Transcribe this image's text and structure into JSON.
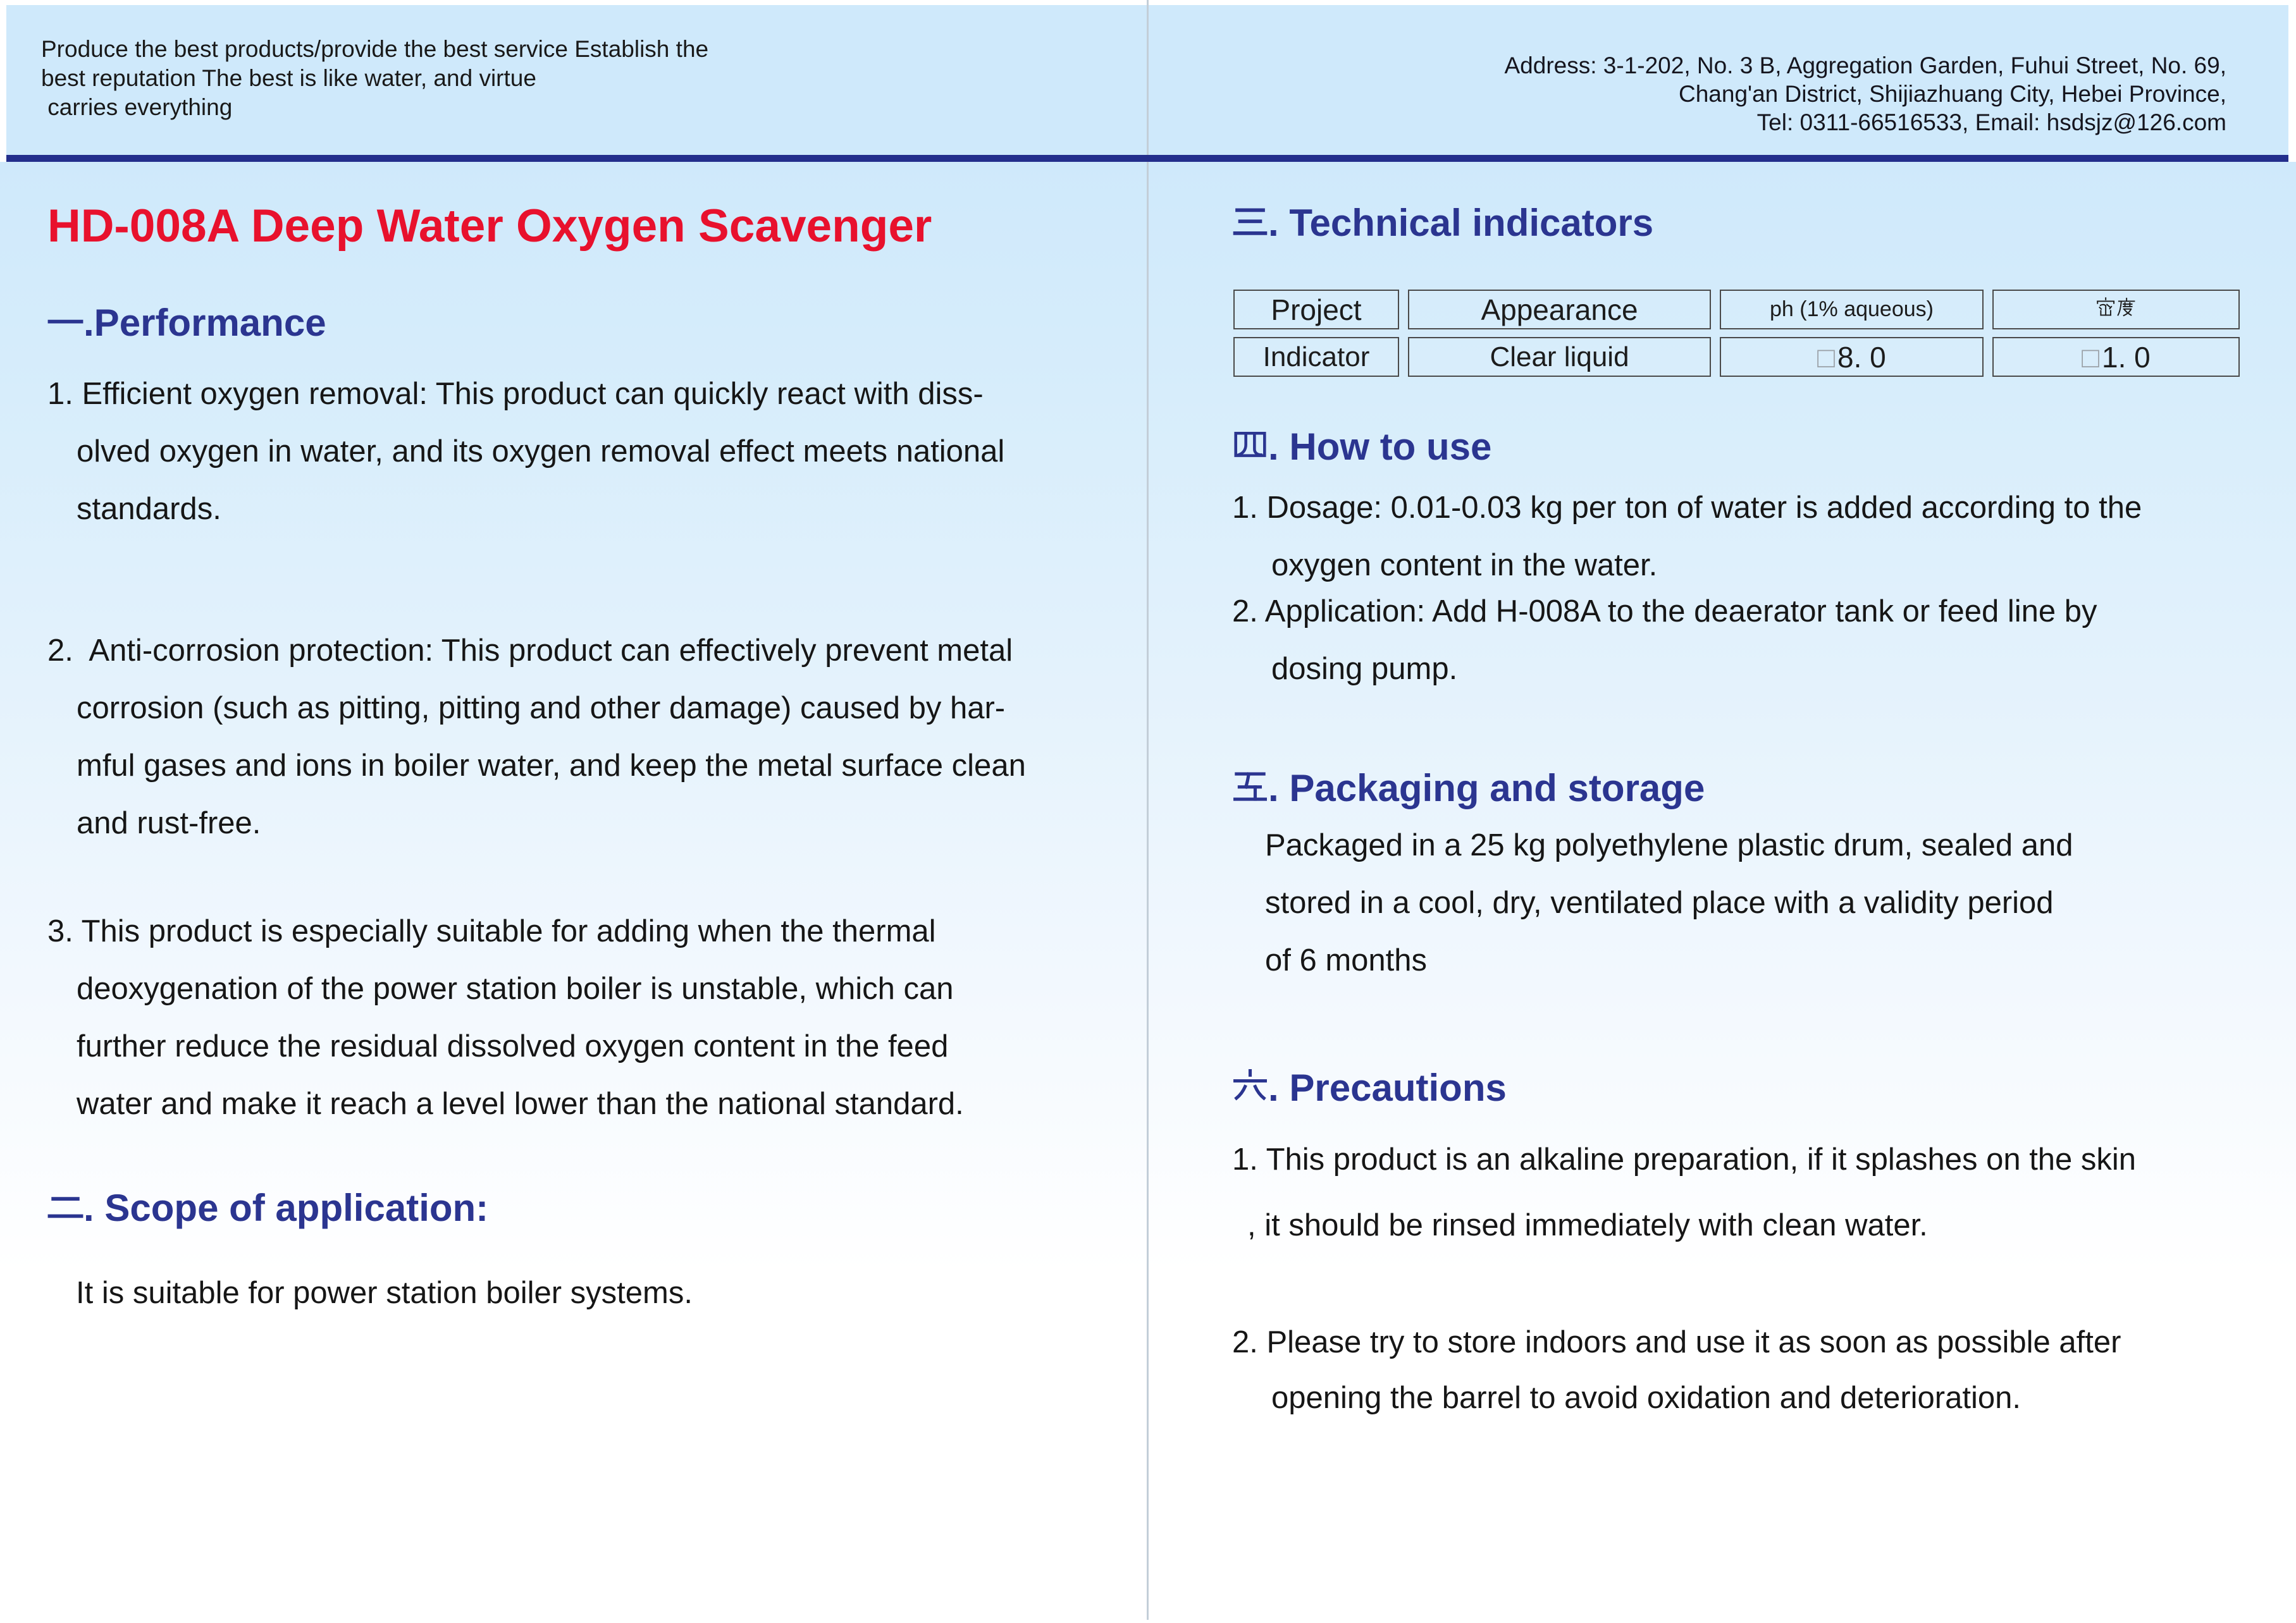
{
  "header": {
    "slogan_lines": [
      "Produce the best products/provide the best service Establish the",
      "best reputation The best is like water, and virtue",
      " carries everything"
    ],
    "address_lines": [
      "Address: 3-1-202, No. 3 B, Aggregation Garden, Fuhui Street, No. 69,",
      "Chang'an District, Shijiazhuang City, Hebei Province,",
      "Tel: 0311-66516533, Email: hsdsjz@126.com"
    ]
  },
  "title": "HD-008A Deep Water Oxygen Scavenger",
  "left": {
    "performance": {
      "heading": "一.Performance",
      "item1_lines": [
        "1. Efficient oxygen removal: This product can quickly react with diss-",
        "olved oxygen in water, and its oxygen removal effect meets national",
        "standards."
      ],
      "item2_lines": [
        "2.  Anti-corrosion protection: This product can effectively prevent metal",
        "corrosion (such as pitting, pitting and other damage) caused by har-",
        "mful gases and ions in boiler water, and keep the metal surface clean",
        "and rust-free."
      ],
      "item3_lines": [
        "3. This product is especially suitable for adding when the thermal",
        "deoxygenation of the power station boiler is unstable, which can",
        "further reduce the residual dissolved oxygen content in the feed",
        "water and make it reach a level lower than the national standard."
      ]
    },
    "scope": {
      "heading": "二. Scope of application:",
      "body": "It is suitable for power station boiler systems."
    }
  },
  "right": {
    "technical": {
      "heading": "三. Technical indicators",
      "table": {
        "header": [
          "Project",
          "Appearance",
          "ph (1% aqueous)",
          "密度"
        ],
        "row_label": "Indicator",
        "appearance_value": "Clear liquid",
        "ph_box": "□",
        "ph_value": "8. 0",
        "density_box": "□",
        "density_value": "1. 0"
      }
    },
    "how_to_use": {
      "heading": "四. How to use",
      "item1_lines": [
        "1. Dosage: 0.01-0.03 kg per ton of water is added according to the",
        "oxygen content in the water."
      ],
      "item2_lines": [
        "2. Application: Add H-008A to the deaerator tank or feed line by",
        "dosing pump."
      ]
    },
    "packaging": {
      "heading": "五. Packaging and storage",
      "body_lines": [
        "Packaged in a 25 kg polyethylene plastic drum, sealed and",
        "stored in a cool, dry, ventilated place with a validity period",
        "of 6 months"
      ]
    },
    "precautions": {
      "heading": "六. Precautions",
      "item1_lines": [
        "1. This product is an alkaline preparation, if it splashes on the skin",
        ", it should be rinsed immediately with clean water."
      ],
      "item2_lines": [
        "2. Please try to store indoors and use it as soon as possible after",
        "opening the barrel to avoid oxidation and deterioration."
      ]
    }
  },
  "colors": {
    "band_blue": "#cfe9fb",
    "rule_navy": "#232e8c",
    "heading_navy": "#2b3590",
    "title_red": "#e8112d",
    "body_text": "#161616"
  }
}
